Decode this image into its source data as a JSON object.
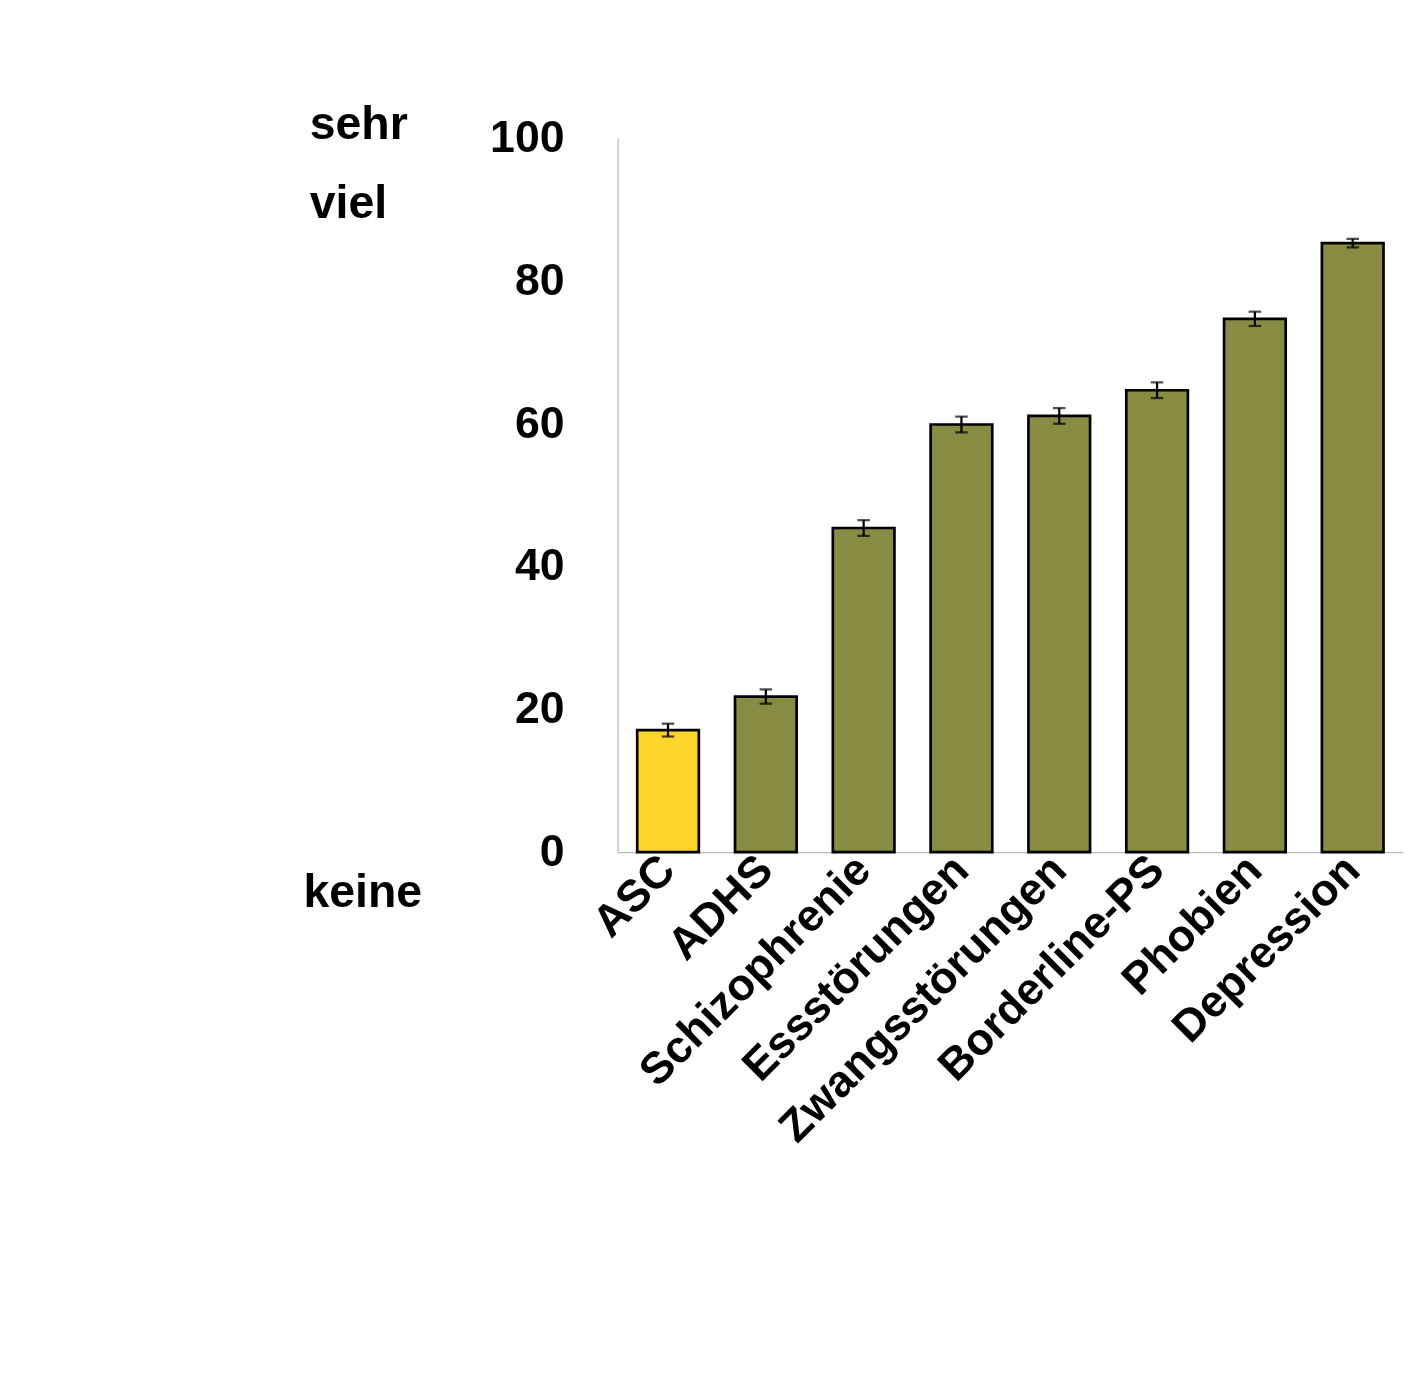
{
  "chart_data": {
    "type": "bar",
    "categories": [
      "ASC",
      "ADHS",
      "Schizophrenie",
      "Essstörungen",
      "Zwangsstörungen",
      "Borderline-PS",
      "Phobien",
      "Depression"
    ],
    "values": [
      17.1,
      21.8,
      45.4,
      59.9,
      61.1,
      64.7,
      74.7,
      85.3
    ],
    "errors": [
      0.9,
      1.0,
      1.1,
      1.1,
      1.1,
      1.1,
      1.0,
      0.6
    ],
    "colors": [
      "#fdd52b",
      "#878c42",
      "#878c42",
      "#878c42",
      "#878c42",
      "#878c42",
      "#878c42",
      "#878c42"
    ],
    "ylim": [
      0,
      100
    ],
    "yticks": [
      0,
      20,
      40,
      60,
      80,
      100
    ],
    "grid": false,
    "annotations": [
      "sehr viel",
      "keine"
    ]
  }
}
